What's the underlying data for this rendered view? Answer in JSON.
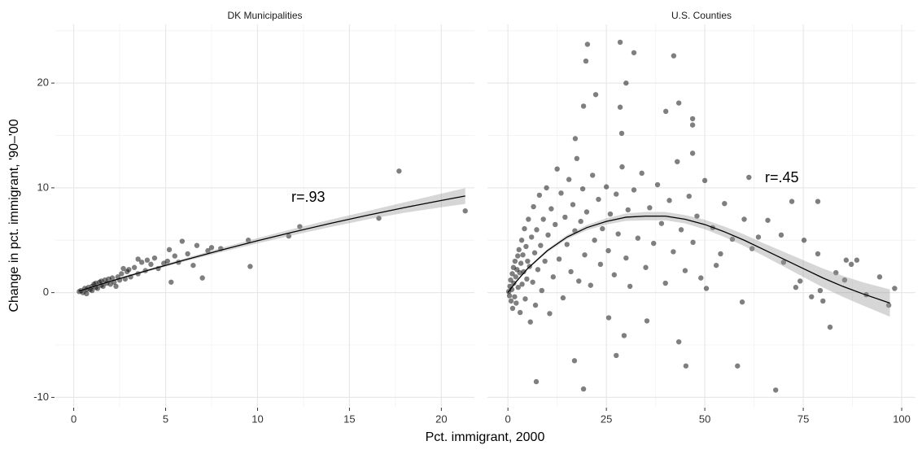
{
  "xlabel": "Pct. immigrant, 2000",
  "ylabel": "Change in pct. immigrant, '90–'00",
  "chart_data": [
    {
      "type": "scatter",
      "title": "DK Municipalities",
      "annotation": "r=.93",
      "color": "#000000",
      "alpha": 0.5,
      "grid": true,
      "show_yticklabels": true,
      "xlim": [
        -1,
        21.8
      ],
      "ylim": [
        -10.9,
        25.6
      ],
      "xticks": [
        0,
        5,
        10,
        15,
        20
      ],
      "xminor": [
        2.5,
        7.5,
        12.5,
        17.5
      ],
      "yticks": [
        -10,
        0,
        10,
        20
      ],
      "yminor": [
        -5,
        5,
        15,
        25
      ],
      "x": [
        0.3,
        0.4,
        0.5,
        0.6,
        0.7,
        0.7,
        0.8,
        0.9,
        1.0,
        1.0,
        1.1,
        1.2,
        1.2,
        1.3,
        1.4,
        1.5,
        1.5,
        1.6,
        1.7,
        1.8,
        1.9,
        2.0,
        2.1,
        2.2,
        2.3,
        2.4,
        2.5,
        2.6,
        2.7,
        2.8,
        2.9,
        3.0,
        3.1,
        3.3,
        3.5,
        3.5,
        3.7,
        3.9,
        4.0,
        4.2,
        4.4,
        4.6,
        4.9,
        5.1,
        5.2,
        5.3,
        5.5,
        5.7,
        5.9,
        6.2,
        6.5,
        6.7,
        7.0,
        7.3,
        7.5,
        8.0,
        9.5,
        9.6,
        11.7,
        12.3,
        16.6,
        17.7,
        21.3
      ],
      "values": [
        0.1,
        0.2,
        0.0,
        0.4,
        0.3,
        -0.1,
        0.5,
        0.3,
        0.6,
        0.2,
        0.8,
        0.5,
        0.9,
        0.4,
        1.0,
        0.7,
        1.1,
        0.6,
        1.2,
        0.9,
        1.3,
        0.8,
        1.4,
        1.0,
        0.6,
        1.5,
        1.2,
        1.8,
        2.3,
        1.3,
        2.0,
        2.2,
        1.5,
        2.4,
        1.8,
        3.2,
        2.9,
        2.1,
        3.1,
        2.7,
        3.3,
        2.3,
        2.8,
        3.0,
        4.1,
        1.0,
        3.5,
        2.9,
        4.9,
        3.7,
        2.6,
        4.5,
        1.4,
        4.0,
        4.3,
        4.2,
        5.0,
        2.5,
        5.4,
        6.3,
        7.1,
        11.6,
        7.8
      ],
      "fit": {
        "x": [
          0.3,
          2,
          4,
          6,
          8,
          10,
          12,
          14,
          16,
          18,
          20,
          21.3
        ],
        "y": [
          0.16,
          1.08,
          2.11,
          3.1,
          4.05,
          4.95,
          5.81,
          6.62,
          7.39,
          8.12,
          8.8,
          9.22
        ],
        "lower": [
          0.01,
          0.98,
          1.99,
          2.95,
          3.85,
          4.7,
          5.51,
          6.27,
          6.99,
          7.62,
          8.15,
          8.47
        ],
        "upper": [
          0.31,
          1.18,
          2.23,
          3.25,
          4.25,
          5.2,
          6.11,
          6.97,
          7.79,
          8.62,
          9.45,
          9.97
        ]
      }
    },
    {
      "type": "scatter",
      "title": "U.S. Counties",
      "annotation": "r=.45",
      "color": "#000000",
      "alpha": 0.5,
      "grid": true,
      "show_yticklabels": false,
      "xlim": [
        -5.2,
        103.5
      ],
      "ylim": [
        -10.9,
        25.6
      ],
      "xticks": [
        0,
        25,
        50,
        75,
        100
      ],
      "xminor": [
        12.5,
        37.5,
        62.5,
        87.5
      ],
      "yticks": [
        -10,
        0,
        10,
        20
      ],
      "yminor": [
        -5,
        5,
        15,
        25
      ],
      "x": [
        0.2,
        0.4,
        0.5,
        0.7,
        0.8,
        1.0,
        1.1,
        1.2,
        1.4,
        1.5,
        1.7,
        1.8,
        2.0,
        2.1,
        2.3,
        2.5,
        2.6,
        2.8,
        3.0,
        3.1,
        3.3,
        3.5,
        3.6,
        3.8,
        4.0,
        4.2,
        4.4,
        4.6,
        4.8,
        5.0,
        5.2,
        5.5,
        5.7,
        6.0,
        6.3,
        6.5,
        6.8,
        7.0,
        7.3,
        7.6,
        8.0,
        8.3,
        8.6,
        9.0,
        9.4,
        9.8,
        10.2,
        10.6,
        11.0,
        11.5,
        12,
        12.5,
        13,
        13.5,
        14,
        14.5,
        15,
        15.5,
        16,
        16.5,
        17,
        17.5,
        18,
        18.5,
        19,
        19.5,
        20,
        21,
        21.5,
        22,
        23,
        23.5,
        24,
        25,
        25.5,
        26,
        27,
        27.5,
        28,
        29,
        30,
        30.5,
        31,
        32,
        33,
        34,
        35,
        36,
        37,
        38,
        39,
        40,
        41,
        42,
        43,
        44,
        45,
        46,
        47,
        48,
        49,
        50,
        52,
        54,
        55,
        57,
        60,
        62,
        66,
        70,
        20.2,
        19.8,
        28.5,
        32.0,
        42.1,
        30,
        19.2,
        22.3,
        28.5,
        43.4,
        40.1,
        28.9,
        46.9,
        46.9,
        46.9,
        17.1,
        61.2,
        72.1,
        78.7,
        75.2,
        80,
        81.8,
        77.1,
        83.3,
        91,
        96.7,
        98.2,
        94.4,
        58.3,
        68,
        19.2,
        7.2,
        16.9,
        27.5,
        29.5,
        35.3,
        45.2,
        43.4,
        25.6,
        59.5,
        50.4,
        52.9,
        63.6,
        69.4,
        85.9,
        87.2,
        88.6,
        78.7,
        73.1,
        74.2,
        79.3,
        85.5
      ],
      "values": [
        0.1,
        -0.3,
        0.6,
        1.2,
        -0.8,
        0.3,
        1.8,
        -1.5,
        2.4,
        0.9,
        -0.4,
        3.0,
        1.5,
        -1.0,
        2.2,
        3.5,
        0.5,
        4.1,
        1.9,
        -1.9,
        2.8,
        5.0,
        0.8,
        3.6,
        2.0,
        6.1,
        -0.6,
        4.4,
        1.3,
        3.0,
        7.0,
        2.5,
        -2.8,
        5.3,
        1.0,
        8.2,
        3.8,
        -1.2,
        6.0,
        2.2,
        9.3,
        4.5,
        0.2,
        7.0,
        3.0,
        10.0,
        5.5,
        -2.0,
        8.0,
        1.5,
        6.5,
        11.8,
        3.2,
        9.5,
        -0.5,
        7.2,
        4.6,
        10.8,
        2.0,
        8.4,
        5.9,
        12.8,
        1.1,
        6.8,
        9.9,
        3.6,
        7.7,
        0.7,
        11.2,
        5.0,
        8.9,
        2.7,
        6.1,
        10.1,
        4.0,
        7.5,
        1.7,
        9.4,
        5.6,
        12.0,
        3.3,
        7.9,
        0.6,
        9.8,
        5.2,
        11.4,
        2.4,
        8.1,
        4.7,
        10.3,
        6.6,
        0.9,
        8.8,
        3.9,
        12.5,
        6.0,
        2.1,
        9.2,
        4.8,
        7.3,
        1.4,
        10.7,
        6.2,
        3.7,
        8.5,
        5.1,
        7.0,
        4.2,
        6.9,
        2.9,
        23.7,
        22.1,
        23.9,
        22.9,
        22.6,
        20,
        17.8,
        18.9,
        17.7,
        18.1,
        17.3,
        15.2,
        16.6,
        13.3,
        16.0,
        14.7,
        11.0,
        8.7,
        8.7,
        5.0,
        -0.8,
        -3.3,
        -0.4,
        1.9,
        -0.2,
        -1.2,
        0.4,
        1.5,
        -7.0,
        -9.3,
        -9.2,
        -8.5,
        -6.5,
        -6.0,
        -4.1,
        -2.7,
        -7.0,
        -4.7,
        -2.4,
        -0.9,
        0.4,
        2.6,
        5.3,
        5.5,
        3.1,
        2.7,
        3.1,
        3.7,
        0.5,
        1.1,
        0.2,
        1.2
      ],
      "fit": {
        "x": [
          0,
          2,
          5,
          10,
          15,
          20,
          25,
          30,
          35,
          40,
          45,
          50,
          55,
          60,
          65,
          70,
          75,
          80,
          85,
          90,
          97
        ],
        "y": [
          0,
          1.0,
          2.3,
          4.0,
          5.3,
          6.2,
          6.8,
          7.2,
          7.3,
          7.3,
          7.0,
          6.5,
          5.8,
          5.0,
          4.1,
          3.2,
          2.3,
          1.4,
          0.6,
          -0.1,
          -1.0
        ],
        "lower": [
          -0.1,
          0.9,
          2.2,
          3.85,
          5.1,
          5.95,
          6.5,
          6.85,
          6.9,
          6.9,
          6.6,
          6.05,
          5.3,
          4.45,
          3.5,
          2.5,
          1.5,
          0.5,
          -0.4,
          -1.2,
          -2.3
        ],
        "upper": [
          0.1,
          1.1,
          2.4,
          4.15,
          5.5,
          6.45,
          7.1,
          7.55,
          7.7,
          7.7,
          7.4,
          6.95,
          6.3,
          5.55,
          4.7,
          3.9,
          3.1,
          2.3,
          1.6,
          1.0,
          0.3
        ]
      }
    }
  ]
}
